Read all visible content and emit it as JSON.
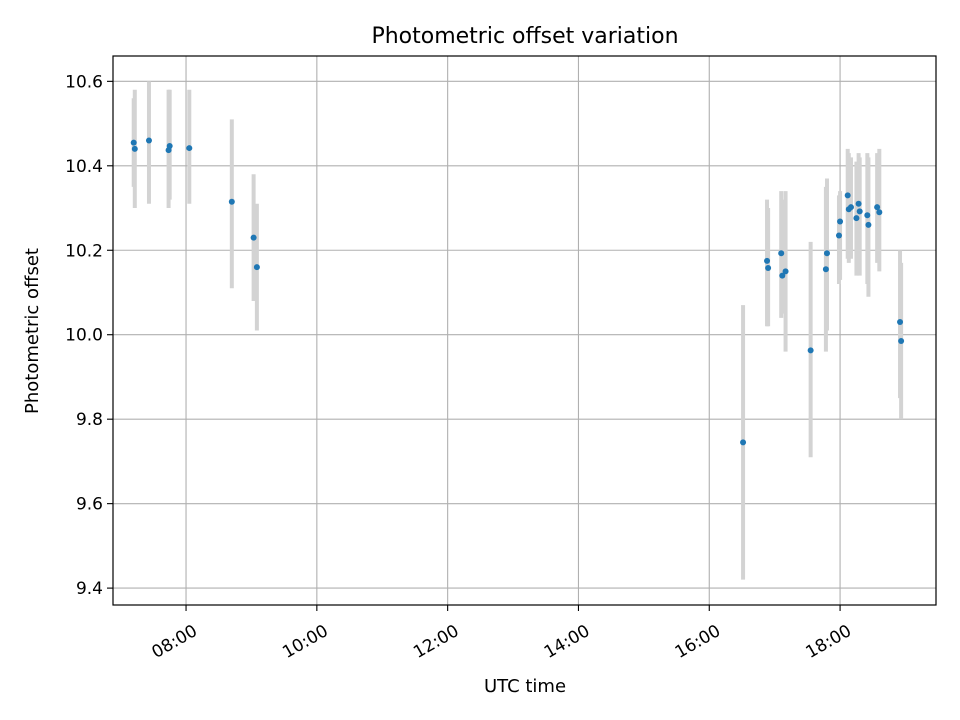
{
  "chart_data": {
    "type": "scatter",
    "title": "Photometric offset variation",
    "xlabel": "UTC time",
    "ylabel": "Photometric offset",
    "grid": true,
    "xlim": [
      "06:53",
      "19:28"
    ],
    "ylim": [
      9.36,
      10.66
    ],
    "x_ticks": [
      "08:00",
      "10:00",
      "12:00",
      "14:00",
      "16:00",
      "18:00"
    ],
    "y_ticks": [
      "9.4",
      "9.6",
      "9.8",
      "10.0",
      "10.2",
      "10.4",
      "10.6"
    ],
    "colors": {
      "points": "#1f77b4",
      "errorbars": "#d3d3d3",
      "grid": "#b0b0b0"
    },
    "points": [
      {
        "x": "07:12",
        "y": 10.455,
        "lo": 10.35,
        "hi": 10.56
      },
      {
        "x": "07:13",
        "y": 10.44,
        "lo": 10.3,
        "hi": 10.58
      },
      {
        "x": "07:26",
        "y": 10.46,
        "lo": 10.31,
        "hi": 10.6
      },
      {
        "x": "07:44",
        "y": 10.437,
        "lo": 10.3,
        "hi": 10.58
      },
      {
        "x": "07:45",
        "y": 10.447,
        "lo": 10.32,
        "hi": 10.58
      },
      {
        "x": "08:03",
        "y": 10.442,
        "lo": 10.31,
        "hi": 10.58
      },
      {
        "x": "08:42",
        "y": 10.315,
        "lo": 10.11,
        "hi": 10.51
      },
      {
        "x": "09:02",
        "y": 10.23,
        "lo": 10.08,
        "hi": 10.38
      },
      {
        "x": "09:05",
        "y": 10.16,
        "lo": 10.01,
        "hi": 10.31
      },
      {
        "x": "16:31",
        "y": 9.745,
        "lo": 9.42,
        "hi": 10.07
      },
      {
        "x": "16:53",
        "y": 10.175,
        "lo": 10.02,
        "hi": 10.32
      },
      {
        "x": "16:54",
        "y": 10.158,
        "lo": 10.02,
        "hi": 10.3
      },
      {
        "x": "17:06",
        "y": 10.193,
        "lo": 10.04,
        "hi": 10.34
      },
      {
        "x": "17:07",
        "y": 10.14,
        "lo": 10.05,
        "hi": 10.32
      },
      {
        "x": "17:10",
        "y": 10.15,
        "lo": 9.96,
        "hi": 10.34
      },
      {
        "x": "17:33",
        "y": 9.963,
        "lo": 9.71,
        "hi": 10.22
      },
      {
        "x": "17:47",
        "y": 10.155,
        "lo": 9.96,
        "hi": 10.35
      },
      {
        "x": "17:48",
        "y": 10.193,
        "lo": 10.01,
        "hi": 10.37
      },
      {
        "x": "17:59",
        "y": 10.235,
        "lo": 10.12,
        "hi": 10.33
      },
      {
        "x": "18:00",
        "y": 10.268,
        "lo": 10.13,
        "hi": 10.34
      },
      {
        "x": "18:07",
        "y": 10.33,
        "lo": 10.18,
        "hi": 10.44
      },
      {
        "x": "18:08",
        "y": 10.297,
        "lo": 10.17,
        "hi": 10.43
      },
      {
        "x": "18:10",
        "y": 10.302,
        "lo": 10.18,
        "hi": 10.42
      },
      {
        "x": "18:15",
        "y": 10.276,
        "lo": 10.14,
        "hi": 10.41
      },
      {
        "x": "18:17",
        "y": 10.31,
        "lo": 10.19,
        "hi": 10.43
      },
      {
        "x": "18:18",
        "y": 10.292,
        "lo": 10.14,
        "hi": 10.42
      },
      {
        "x": "18:25",
        "y": 10.283,
        "lo": 10.12,
        "hi": 10.43
      },
      {
        "x": "18:26",
        "y": 10.26,
        "lo": 10.09,
        "hi": 10.42
      },
      {
        "x": "18:34",
        "y": 10.302,
        "lo": 10.17,
        "hi": 10.43
      },
      {
        "x": "18:36",
        "y": 10.29,
        "lo": 10.15,
        "hi": 10.44
      },
      {
        "x": "18:55",
        "y": 10.03,
        "lo": 9.85,
        "hi": 10.2
      },
      {
        "x": "18:56",
        "y": 9.985,
        "lo": 9.8,
        "hi": 10.17
      }
    ]
  }
}
